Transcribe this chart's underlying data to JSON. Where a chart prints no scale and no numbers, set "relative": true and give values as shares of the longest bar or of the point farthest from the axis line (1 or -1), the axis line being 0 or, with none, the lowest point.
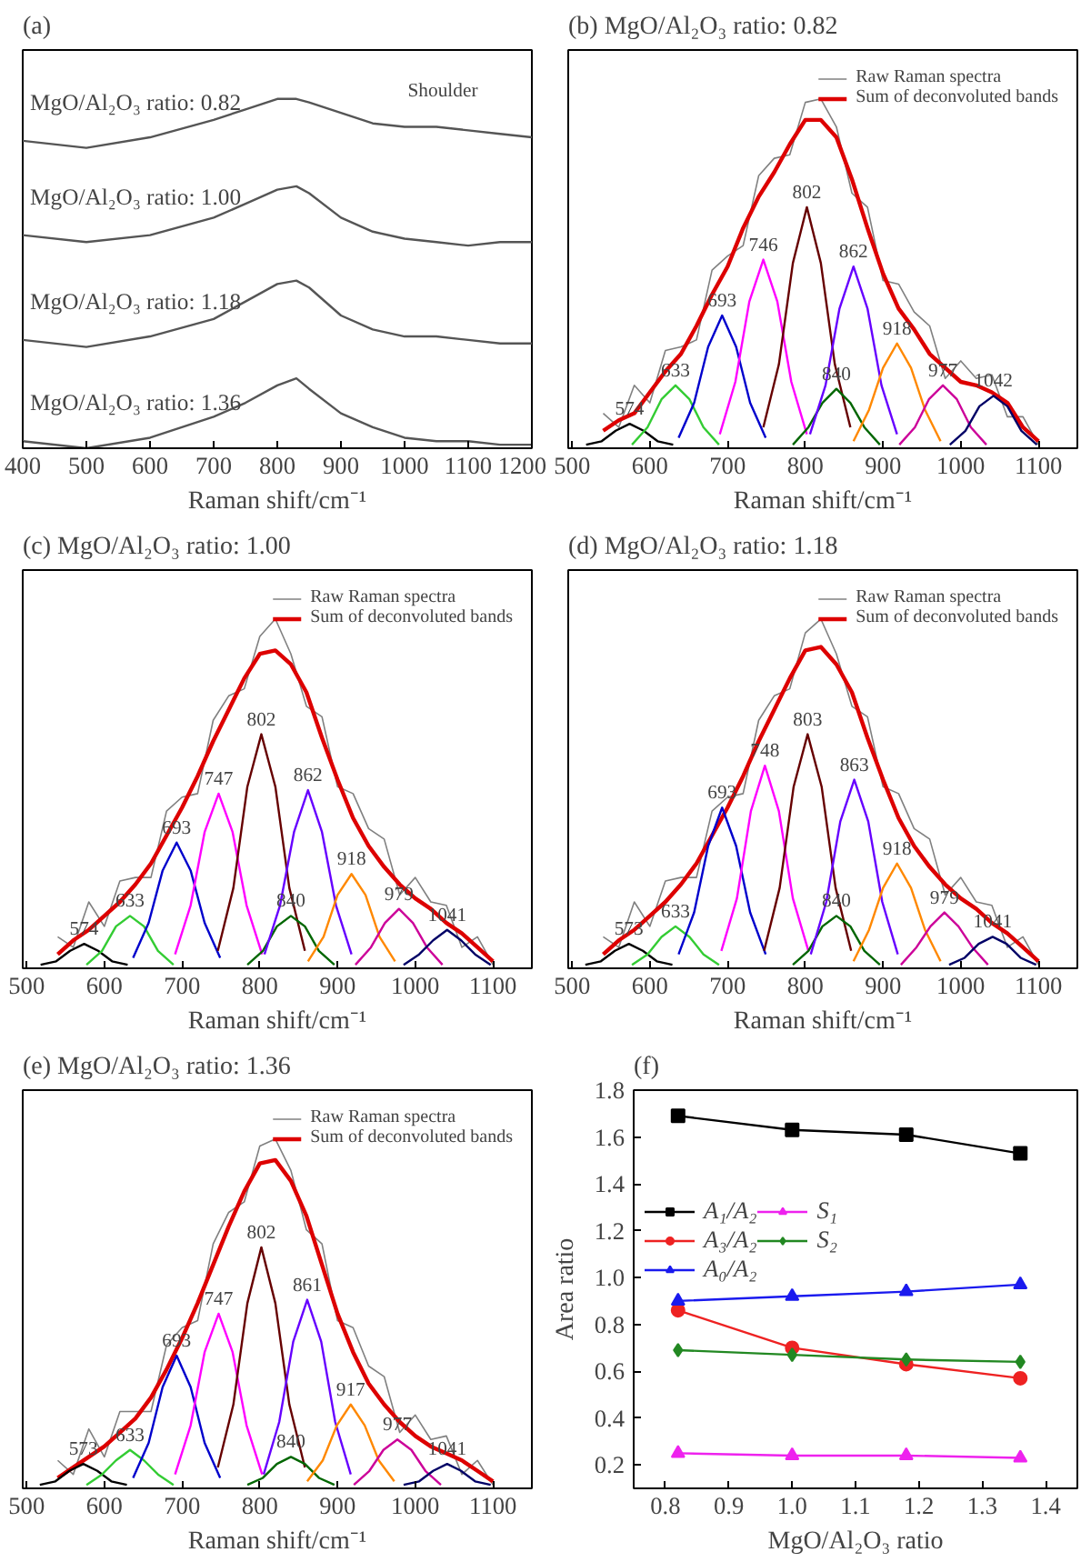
{
  "chart_data": [
    {
      "type": "line",
      "title": "(a)",
      "xlabel": "Raman shift/cm⁻¹",
      "relative": true,
      "xlim": [
        400,
        1200
      ],
      "xticks": [
        400,
        500,
        600,
        700,
        800,
        900,
        1000,
        1100,
        1200
      ],
      "x": [
        400,
        500,
        600,
        700,
        750,
        800,
        830,
        850,
        900,
        950,
        1000,
        1050,
        1100,
        1150,
        1200
      ],
      "series": [
        {
          "name": "MgO/Al₂O₃ ratio: 0.82",
          "color": "#555555",
          "values": [
            0.88,
            0.86,
            0.89,
            0.94,
            0.97,
            1.0,
            1.0,
            0.99,
            0.96,
            0.93,
            0.92,
            0.92,
            0.91,
            0.9,
            0.89
          ]
        },
        {
          "name": "MgO/Al₂O₃ ratio: 1.00",
          "color": "#555555",
          "values": [
            0.61,
            0.59,
            0.61,
            0.66,
            0.7,
            0.74,
            0.75,
            0.73,
            0.66,
            0.62,
            0.6,
            0.59,
            0.58,
            0.59,
            0.59
          ]
        },
        {
          "name": "MgO/Al₂O₃ ratio: 1.18",
          "color": "#555555",
          "values": [
            0.31,
            0.29,
            0.32,
            0.37,
            0.42,
            0.47,
            0.48,
            0.46,
            0.38,
            0.34,
            0.32,
            0.32,
            0.31,
            0.3,
            0.3
          ]
        },
        {
          "name": "MgO/Al₂O₃ ratio: 1.36",
          "color": "#555555",
          "values": [
            0.02,
            0.0,
            0.03,
            0.09,
            0.13,
            0.18,
            0.2,
            0.17,
            0.1,
            0.06,
            0.03,
            0.02,
            0.02,
            0.01,
            0.01
          ]
        }
      ],
      "annotations": [
        {
          "text": "Shoulder",
          "x": 1060,
          "y": 0.92
        }
      ]
    },
    {
      "type": "line",
      "title": "(b) MgO/Al₂O₃ ratio: 0.82",
      "xlabel": "Raman shift/cm⁻¹",
      "relative": true,
      "legend": "top right",
      "xlim": [
        495,
        1150
      ],
      "xticks": [
        500,
        600,
        700,
        800,
        900,
        1000,
        1100
      ],
      "x": [
        540,
        560,
        580,
        600,
        620,
        640,
        660,
        680,
        700,
        720,
        740,
        760,
        780,
        800,
        820,
        840,
        860,
        880,
        900,
        920,
        940,
        960,
        980,
        1000,
        1020,
        1040,
        1060,
        1080,
        1100
      ],
      "series": [
        {
          "name": "Raw Raman spectra",
          "color": "#808080",
          "values": [
            0.1,
            0.06,
            0.18,
            0.13,
            0.28,
            0.29,
            0.31,
            0.51,
            0.55,
            0.58,
            0.78,
            0.83,
            0.84,
            0.99,
            1.0,
            0.92,
            0.73,
            0.69,
            0.48,
            0.47,
            0.39,
            0.35,
            0.2,
            0.25,
            0.2,
            0.21,
            0.09,
            0.09,
            0.01
          ]
        },
        {
          "name": "Sum of deconvoluted bands",
          "color": "#dd0000",
          "values": [
            0.05,
            0.08,
            0.1,
            0.16,
            0.22,
            0.27,
            0.35,
            0.44,
            0.52,
            0.63,
            0.72,
            0.79,
            0.87,
            0.94,
            0.94,
            0.89,
            0.77,
            0.63,
            0.5,
            0.4,
            0.34,
            0.27,
            0.23,
            0.19,
            0.18,
            0.16,
            0.13,
            0.06,
            0.02
          ]
        },
        {
          "color": "#000000",
          "x": [
            518,
            538,
            556,
            574,
            592,
            610,
            630
          ],
          "values": [
            0.01,
            0.02,
            0.05,
            0.07,
            0.05,
            0.02,
            0.01
          ]
        },
        {
          "color": "#33cc33",
          "x": [
            577,
            597,
            615,
            633,
            651,
            669,
            689
          ],
          "values": [
            0.01,
            0.06,
            0.14,
            0.18,
            0.14,
            0.06,
            0.01
          ]
        },
        {
          "color": "#0000cc",
          "x": [
            637,
            657,
            675,
            693,
            711,
            729,
            749
          ],
          "values": [
            0.03,
            0.13,
            0.29,
            0.38,
            0.29,
            0.13,
            0.03
          ]
        },
        {
          "color": "#ff00ff",
          "x": [
            690,
            710,
            728,
            746,
            764,
            782,
            802
          ],
          "values": [
            0.04,
            0.19,
            0.42,
            0.54,
            0.42,
            0.19,
            0.04
          ]
        },
        {
          "color": "#660000",
          "x": [
            746,
            766,
            784,
            802,
            820,
            838,
            858
          ],
          "values": [
            0.06,
            0.24,
            0.53,
            0.69,
            0.53,
            0.24,
            0.06
          ]
        },
        {
          "color": "#006600",
          "x": [
            784,
            804,
            822,
            840,
            858,
            876,
            896
          ],
          "values": [
            0.01,
            0.06,
            0.13,
            0.17,
            0.13,
            0.06,
            0.01
          ]
        },
        {
          "color": "#6600ff",
          "x": [
            806,
            826,
            844,
            862,
            880,
            898,
            918
          ],
          "values": [
            0.04,
            0.18,
            0.4,
            0.52,
            0.4,
            0.18,
            0.04
          ]
        },
        {
          "color": "#ff8800",
          "x": [
            862,
            882,
            900,
            918,
            936,
            954,
            974
          ],
          "values": [
            0.02,
            0.11,
            0.23,
            0.3,
            0.23,
            0.11,
            0.02
          ]
        },
        {
          "color": "#cc0099",
          "x": [
            921,
            941,
            959,
            977,
            995,
            1013,
            1033
          ],
          "values": [
            0.01,
            0.06,
            0.14,
            0.18,
            0.14,
            0.06,
            0.01
          ]
        },
        {
          "color": "#000066",
          "x": [
            986,
            1006,
            1024,
            1042,
            1060,
            1078,
            1098
          ],
          "values": [
            0.01,
            0.05,
            0.12,
            0.15,
            0.12,
            0.05,
            0.01
          ]
        }
      ],
      "annotations": [
        {
          "text": "574",
          "x": 574,
          "y": 0.07
        },
        {
          "text": "633",
          "x": 633,
          "y": 0.18
        },
        {
          "text": "693",
          "x": 693,
          "y": 0.38
        },
        {
          "text": "746",
          "x": 746,
          "y": 0.54
        },
        {
          "text": "802",
          "x": 802,
          "y": 0.69
        },
        {
          "text": "840",
          "x": 840,
          "y": 0.17
        },
        {
          "text": "862",
          "x": 862,
          "y": 0.52
        },
        {
          "text": "918",
          "x": 918,
          "y": 0.3
        },
        {
          "text": "977",
          "x": 977,
          "y": 0.18
        },
        {
          "text": "1042",
          "x": 1042,
          "y": 0.15
        }
      ]
    },
    {
      "type": "line",
      "title": "(c) MgO/Al₂O₃ ratio: 1.00",
      "xlabel": "Raman shift/cm⁻¹",
      "relative": true,
      "legend": "top right",
      "xlim": [
        495,
        1150
      ],
      "xticks": [
        500,
        600,
        700,
        800,
        900,
        1000,
        1100
      ],
      "x": [
        540,
        560,
        580,
        600,
        620,
        640,
        660,
        680,
        700,
        720,
        740,
        760,
        780,
        800,
        820,
        840,
        860,
        880,
        900,
        920,
        940,
        960,
        980,
        1000,
        1020,
        1040,
        1060,
        1080,
        1100
      ],
      "series": [
        {
          "name": "Raw Raman spectra",
          "color": "#808080",
          "values": [
            0.09,
            0.06,
            0.19,
            0.12,
            0.25,
            0.26,
            0.26,
            0.45,
            0.49,
            0.5,
            0.71,
            0.78,
            0.8,
            0.95,
            1.0,
            0.9,
            0.75,
            0.72,
            0.52,
            0.5,
            0.4,
            0.37,
            0.21,
            0.26,
            0.19,
            0.18,
            0.06,
            0.09,
            0.01
          ]
        },
        {
          "name": "Sum of deconvoluted bands",
          "color": "#dd0000",
          "values": [
            0.04,
            0.08,
            0.11,
            0.15,
            0.19,
            0.24,
            0.3,
            0.38,
            0.46,
            0.55,
            0.65,
            0.74,
            0.83,
            0.9,
            0.91,
            0.87,
            0.79,
            0.66,
            0.54,
            0.43,
            0.35,
            0.29,
            0.24,
            0.2,
            0.17,
            0.13,
            0.1,
            0.06,
            0.02
          ]
        },
        {
          "color": "#000000",
          "x": [
            518,
            538,
            556,
            574,
            592,
            610,
            630
          ],
          "values": [
            0.01,
            0.02,
            0.05,
            0.07,
            0.05,
            0.02,
            0.01
          ]
        },
        {
          "color": "#33cc33",
          "x": [
            577,
            597,
            615,
            633,
            651,
            669,
            689
          ],
          "values": [
            0.01,
            0.05,
            0.12,
            0.15,
            0.12,
            0.05,
            0.01
          ]
        },
        {
          "color": "#0000cc",
          "x": [
            637,
            657,
            675,
            693,
            711,
            729,
            749
          ],
          "values": [
            0.03,
            0.13,
            0.28,
            0.36,
            0.28,
            0.13,
            0.03
          ]
        },
        {
          "color": "#ff00ff",
          "x": [
            691,
            711,
            729,
            747,
            765,
            783,
            803
          ],
          "values": [
            0.04,
            0.18,
            0.39,
            0.5,
            0.39,
            0.18,
            0.04
          ]
        },
        {
          "color": "#660000",
          "x": [
            746,
            766,
            784,
            802,
            820,
            838,
            858
          ],
          "values": [
            0.05,
            0.23,
            0.52,
            0.67,
            0.52,
            0.23,
            0.05
          ]
        },
        {
          "color": "#006600",
          "x": [
            784,
            804,
            822,
            840,
            858,
            876,
            896
          ],
          "values": [
            0.01,
            0.05,
            0.12,
            0.15,
            0.12,
            0.05,
            0.01
          ]
        },
        {
          "color": "#6600ff",
          "x": [
            806,
            826,
            844,
            862,
            880,
            898,
            918
          ],
          "values": [
            0.04,
            0.18,
            0.39,
            0.51,
            0.39,
            0.18,
            0.04
          ]
        },
        {
          "color": "#ff8800",
          "x": [
            862,
            882,
            900,
            918,
            936,
            954,
            974
          ],
          "values": [
            0.02,
            0.09,
            0.21,
            0.27,
            0.21,
            0.09,
            0.02
          ]
        },
        {
          "color": "#cc0099",
          "x": [
            923,
            943,
            961,
            979,
            997,
            1015,
            1035
          ],
          "values": [
            0.01,
            0.06,
            0.13,
            0.17,
            0.13,
            0.06,
            0.01
          ]
        },
        {
          "color": "#000066",
          "x": [
            985,
            1005,
            1023,
            1041,
            1059,
            1077,
            1097
          ],
          "values": [
            0.01,
            0.04,
            0.08,
            0.11,
            0.08,
            0.04,
            0.01
          ]
        }
      ],
      "annotations": [
        {
          "text": "574",
          "x": 574,
          "y": 0.07
        },
        {
          "text": "633",
          "x": 633,
          "y": 0.15
        },
        {
          "text": "693",
          "x": 693,
          "y": 0.36
        },
        {
          "text": "747",
          "x": 747,
          "y": 0.5
        },
        {
          "text": "802",
          "x": 802,
          "y": 0.67
        },
        {
          "text": "840",
          "x": 840,
          "y": 0.15
        },
        {
          "text": "862",
          "x": 862,
          "y": 0.51
        },
        {
          "text": "918",
          "x": 918,
          "y": 0.27
        },
        {
          "text": "979",
          "x": 979,
          "y": 0.17
        },
        {
          "text": "1041",
          "x": 1041,
          "y": 0.11
        }
      ]
    },
    {
      "type": "line",
      "title": "(d) MgO/Al₂O₃ ratio: 1.18",
      "xlabel": "Raman shift/cm⁻¹",
      "relative": true,
      "legend": "top right",
      "xlim": [
        495,
        1150
      ],
      "xticks": [
        500,
        600,
        700,
        800,
        900,
        1000,
        1100
      ],
      "x": [
        540,
        560,
        580,
        600,
        620,
        640,
        660,
        680,
        700,
        720,
        740,
        760,
        780,
        800,
        820,
        840,
        860,
        880,
        900,
        920,
        940,
        960,
        980,
        1000,
        1020,
        1040,
        1060,
        1080,
        1100
      ],
      "series": [
        {
          "name": "Raw Raman spectra",
          "color": "#808080",
          "values": [
            0.09,
            0.06,
            0.19,
            0.12,
            0.25,
            0.26,
            0.26,
            0.45,
            0.49,
            0.5,
            0.71,
            0.78,
            0.8,
            0.96,
            1.0,
            0.9,
            0.75,
            0.72,
            0.52,
            0.5,
            0.4,
            0.37,
            0.21,
            0.26,
            0.19,
            0.18,
            0.06,
            0.09,
            0.01
          ]
        },
        {
          "name": "Sum of deconvoluted bands",
          "color": "#dd0000",
          "values": [
            0.04,
            0.08,
            0.11,
            0.15,
            0.19,
            0.24,
            0.3,
            0.38,
            0.46,
            0.55,
            0.65,
            0.74,
            0.83,
            0.91,
            0.92,
            0.87,
            0.79,
            0.66,
            0.54,
            0.43,
            0.35,
            0.29,
            0.24,
            0.2,
            0.17,
            0.13,
            0.1,
            0.06,
            0.02
          ]
        },
        {
          "color": "#000000",
          "x": [
            517,
            537,
            555,
            573,
            591,
            609,
            629
          ],
          "values": [
            0.01,
            0.02,
            0.05,
            0.07,
            0.05,
            0.02,
            0.01
          ]
        },
        {
          "color": "#33cc33",
          "x": [
            577,
            597,
            615,
            633,
            651,
            669,
            689
          ],
          "values": [
            0.01,
            0.04,
            0.09,
            0.12,
            0.09,
            0.04,
            0.01
          ]
        },
        {
          "color": "#0000cc",
          "x": [
            637,
            657,
            675,
            693,
            711,
            729,
            749
          ],
          "values": [
            0.04,
            0.16,
            0.35,
            0.46,
            0.35,
            0.16,
            0.04
          ]
        },
        {
          "color": "#ff00ff",
          "x": [
            692,
            712,
            730,
            748,
            766,
            784,
            804
          ],
          "values": [
            0.05,
            0.2,
            0.45,
            0.58,
            0.45,
            0.2,
            0.05
          ]
        },
        {
          "color": "#660000",
          "x": [
            747,
            767,
            785,
            803,
            821,
            839,
            859
          ],
          "values": [
            0.05,
            0.23,
            0.52,
            0.67,
            0.52,
            0.23,
            0.05
          ]
        },
        {
          "color": "#006600",
          "x": [
            784,
            804,
            822,
            840,
            858,
            876,
            896
          ],
          "values": [
            0.01,
            0.05,
            0.12,
            0.15,
            0.12,
            0.05,
            0.01
          ]
        },
        {
          "color": "#6600ff",
          "x": [
            807,
            827,
            845,
            863,
            881,
            899,
            919
          ],
          "values": [
            0.04,
            0.19,
            0.42,
            0.54,
            0.42,
            0.19,
            0.04
          ]
        },
        {
          "color": "#ff8800",
          "x": [
            862,
            882,
            900,
            918,
            936,
            954,
            974
          ],
          "values": [
            0.02,
            0.11,
            0.23,
            0.3,
            0.23,
            0.11,
            0.02
          ]
        },
        {
          "color": "#cc0099",
          "x": [
            923,
            943,
            961,
            979,
            997,
            1015,
            1035
          ],
          "values": [
            0.01,
            0.06,
            0.12,
            0.16,
            0.12,
            0.06,
            0.01
          ]
        },
        {
          "color": "#000066",
          "x": [
            985,
            1005,
            1023,
            1041,
            1059,
            1077,
            1097
          ],
          "values": [
            0.01,
            0.03,
            0.07,
            0.09,
            0.07,
            0.03,
            0.01
          ]
        }
      ],
      "annotations": [
        {
          "text": "573",
          "x": 573,
          "y": 0.07
        },
        {
          "text": "633",
          "x": 633,
          "y": 0.12
        },
        {
          "text": "693",
          "x": 693,
          "y": 0.46
        },
        {
          "text": "748",
          "x": 748,
          "y": 0.58
        },
        {
          "text": "803",
          "x": 803,
          "y": 0.67
        },
        {
          "text": "840",
          "x": 840,
          "y": 0.15
        },
        {
          "text": "863",
          "x": 863,
          "y": 0.54
        },
        {
          "text": "918",
          "x": 918,
          "y": 0.3
        },
        {
          "text": "979",
          "x": 979,
          "y": 0.16
        },
        {
          "text": "1041",
          "x": 1041,
          "y": 0.09
        }
      ]
    },
    {
      "type": "line",
      "title": "(e) MgO/Al₂O₃ ratio: 1.36",
      "xlabel": "Raman shift/cm⁻¹",
      "relative": true,
      "legend": "top right",
      "xlim": [
        495,
        1150
      ],
      "xticks": [
        500,
        600,
        700,
        800,
        900,
        1000,
        1100
      ],
      "x": [
        540,
        560,
        580,
        600,
        620,
        640,
        660,
        680,
        700,
        720,
        740,
        760,
        780,
        800,
        820,
        840,
        860,
        880,
        900,
        920,
        940,
        960,
        980,
        1000,
        1020,
        1040,
        1060,
        1080,
        1100
      ],
      "series": [
        {
          "name": "Raw Raman spectra",
          "color": "#808080",
          "values": [
            0.08,
            0.04,
            0.17,
            0.09,
            0.22,
            0.22,
            0.22,
            0.41,
            0.46,
            0.48,
            0.7,
            0.79,
            0.82,
            0.98,
            1.0,
            0.91,
            0.74,
            0.7,
            0.48,
            0.46,
            0.35,
            0.32,
            0.16,
            0.21,
            0.14,
            0.15,
            0.04,
            0.08,
            0.01
          ]
        },
        {
          "name": "Sum of deconvoluted bands",
          "color": "#dd0000",
          "values": [
            0.03,
            0.06,
            0.09,
            0.12,
            0.16,
            0.2,
            0.26,
            0.34,
            0.43,
            0.53,
            0.64,
            0.75,
            0.85,
            0.93,
            0.94,
            0.88,
            0.78,
            0.64,
            0.5,
            0.39,
            0.3,
            0.24,
            0.19,
            0.15,
            0.12,
            0.1,
            0.08,
            0.05,
            0.02
          ]
        },
        {
          "color": "#000000",
          "x": [
            517,
            537,
            555,
            573,
            591,
            609,
            629
          ],
          "values": [
            0.01,
            0.02,
            0.05,
            0.07,
            0.05,
            0.02,
            0.01
          ]
        },
        {
          "color": "#33cc33",
          "x": [
            577,
            597,
            615,
            633,
            651,
            669,
            689
          ],
          "values": [
            0.01,
            0.04,
            0.08,
            0.11,
            0.08,
            0.04,
            0.01
          ]
        },
        {
          "color": "#0000cc",
          "x": [
            637,
            657,
            675,
            693,
            711,
            729,
            749
          ],
          "values": [
            0.03,
            0.13,
            0.29,
            0.38,
            0.29,
            0.13,
            0.03
          ]
        },
        {
          "color": "#ff00ff",
          "x": [
            691,
            711,
            729,
            747,
            765,
            783,
            803
          ],
          "values": [
            0.04,
            0.18,
            0.39,
            0.5,
            0.39,
            0.18,
            0.04
          ]
        },
        {
          "color": "#660000",
          "x": [
            746,
            766,
            784,
            802,
            820,
            838,
            858
          ],
          "values": [
            0.06,
            0.24,
            0.53,
            0.69,
            0.53,
            0.24,
            0.06
          ]
        },
        {
          "color": "#006600",
          "x": [
            784,
            804,
            822,
            840,
            858,
            876,
            896
          ],
          "values": [
            0.01,
            0.03,
            0.07,
            0.09,
            0.07,
            0.03,
            0.01
          ]
        },
        {
          "color": "#6600ff",
          "x": [
            805,
            825,
            843,
            861,
            879,
            897,
            917
          ],
          "values": [
            0.04,
            0.19,
            0.42,
            0.54,
            0.42,
            0.19,
            0.04
          ]
        },
        {
          "color": "#ff8800",
          "x": [
            861,
            881,
            899,
            917,
            935,
            953,
            973
          ],
          "values": [
            0.02,
            0.08,
            0.18,
            0.24,
            0.18,
            0.08,
            0.02
          ]
        },
        {
          "color": "#cc0099",
          "x": [
            921,
            941,
            959,
            977,
            995,
            1013,
            1033
          ],
          "values": [
            0.01,
            0.05,
            0.11,
            0.14,
            0.11,
            0.05,
            0.01
          ]
        },
        {
          "color": "#000066",
          "x": [
            985,
            1005,
            1023,
            1041,
            1059,
            1077,
            1097
          ],
          "values": [
            0.01,
            0.02,
            0.05,
            0.07,
            0.05,
            0.02,
            0.01
          ]
        }
      ],
      "annotations": [
        {
          "text": "573",
          "x": 573,
          "y": 0.07
        },
        {
          "text": "633",
          "x": 633,
          "y": 0.11
        },
        {
          "text": "693",
          "x": 693,
          "y": 0.38
        },
        {
          "text": "747",
          "x": 747,
          "y": 0.5
        },
        {
          "text": "802",
          "x": 802,
          "y": 0.69
        },
        {
          "text": "840",
          "x": 840,
          "y": 0.09
        },
        {
          "text": "861",
          "x": 861,
          "y": 0.54
        },
        {
          "text": "917",
          "x": 917,
          "y": 0.24
        },
        {
          "text": "977",
          "x": 977,
          "y": 0.14
        },
        {
          "text": "1041",
          "x": 1041,
          "y": 0.07
        }
      ]
    },
    {
      "type": "line",
      "title": "(f)",
      "xlabel": "MgO/Al₂O₃ ratio",
      "ylabel": "Area ratio",
      "legend": "center left",
      "x": [
        0.82,
        1.0,
        1.18,
        1.36
      ],
      "xlim": [
        0.75,
        1.45
      ],
      "xticks": [
        0.8,
        0.9,
        {
          "value": 1,
          "label": "1.0"
        },
        1.1,
        1.2,
        1.3,
        1.4
      ],
      "ylim": [
        0.1,
        1.8
      ],
      "yticks": [
        0.2,
        0.4,
        0.6,
        0.8,
        {
          "value": 1,
          "label": "1.0"
        },
        1.2,
        1.4,
        1.6,
        1.8
      ],
      "series": [
        {
          "name": "A₁/A₂",
          "color": "#000000",
          "marker": "square",
          "values": [
            1.69,
            1.63,
            1.61,
            1.53
          ]
        },
        {
          "name": "A₃/A₂",
          "color": "#ee2222",
          "marker": "circle",
          "values": [
            0.86,
            0.7,
            0.63,
            0.57
          ]
        },
        {
          "name": "A₀/A₂",
          "color": "#1a1aee",
          "marker": "triangle",
          "values": [
            0.9,
            0.92,
            0.94,
            0.97
          ]
        },
        {
          "name": "S₁",
          "color": "#ee22ee",
          "marker": "triangle",
          "values": [
            0.25,
            0.24,
            0.24,
            0.23
          ]
        },
        {
          "name": "S₂",
          "color": "#228822",
          "marker": "diamond",
          "values": [
            0.69,
            0.67,
            0.65,
            0.64
          ]
        }
      ]
    }
  ]
}
